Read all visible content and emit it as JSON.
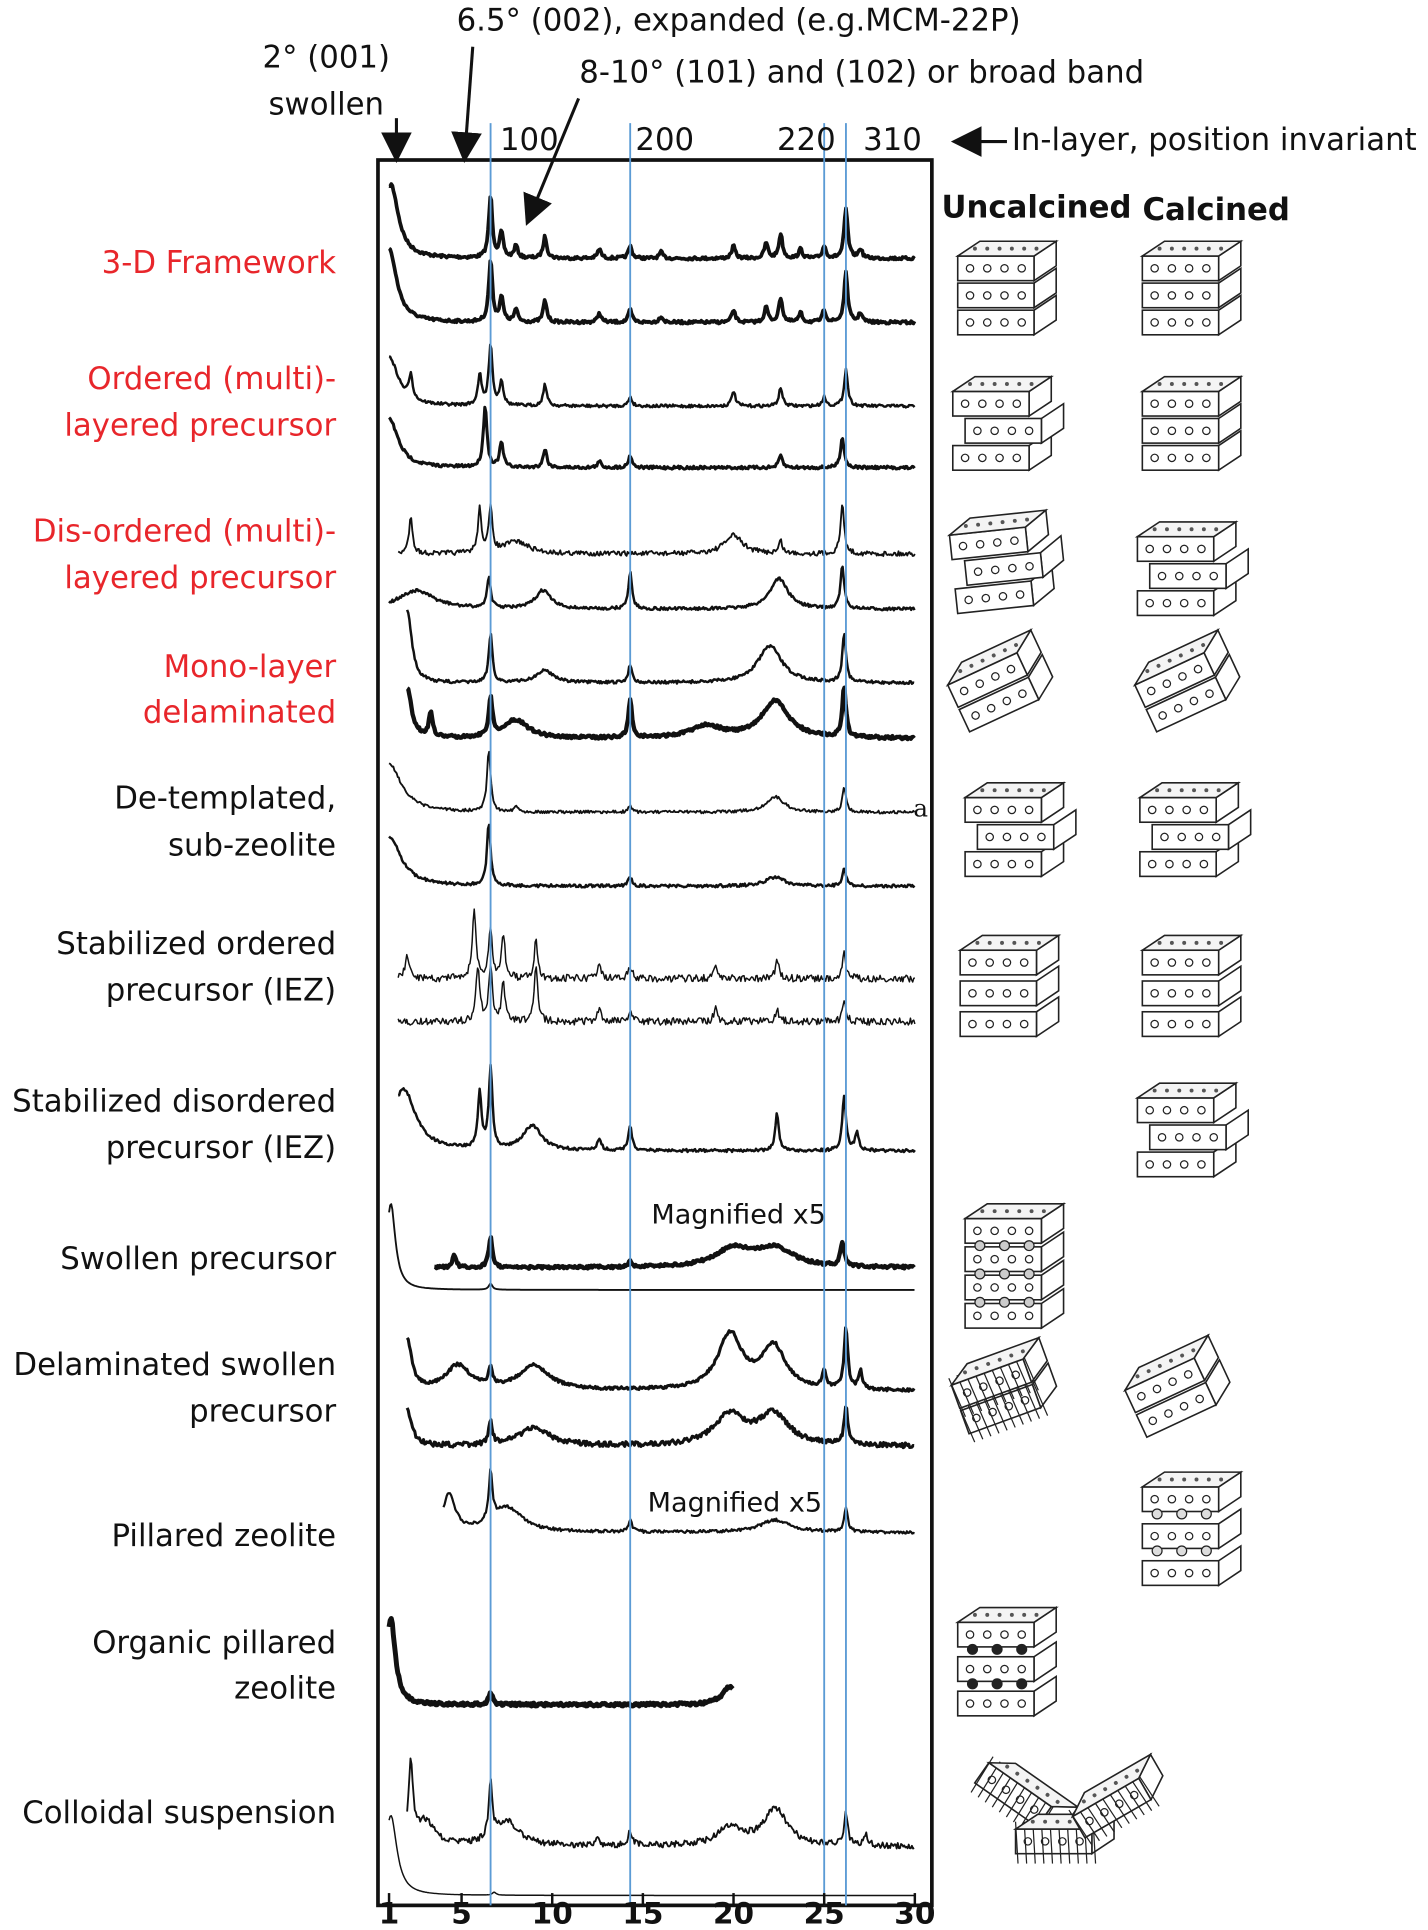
{
  "annotations": {
    "swollen_peak": [
      "2° (001)",
      "swollen"
    ],
    "expanded_peak": "6.5° (002), expanded (e.g.MCM-22P)",
    "broad_band": "8-10° (101) and (102) or broad band",
    "in_layer": "In-layer, position invariant",
    "reflections": [
      "100",
      "200",
      "220",
      "310"
    ],
    "magnified": [
      "Magnified x5",
      "Magnified x5"
    ],
    "mark": "a"
  },
  "columns": [
    "Uncalcined",
    "Calcined"
  ],
  "rows": [
    {
      "label": [
        "3-D Framework"
      ],
      "color": "#e8262b"
    },
    {
      "label": [
        "Ordered (multi)-",
        "layered precursor"
      ],
      "color": "#e8262b"
    },
    {
      "label": [
        "Dis-ordered (multi)-",
        "layered precursor"
      ],
      "color": "#e8262b"
    },
    {
      "label": [
        "Mono-layer",
        "delaminated"
      ],
      "color": "#e8262b"
    },
    {
      "label": [
        "De-templated,",
        "sub-zeolite"
      ],
      "color": "#111111"
    },
    {
      "label": [
        "Stabilized ordered",
        "precursor (IEZ)"
      ],
      "color": "#111111"
    },
    {
      "label": [
        "Stabilized disordered",
        "precursor (IEZ)"
      ],
      "color": "#111111"
    },
    {
      "label": [
        "Swollen precursor"
      ],
      "color": "#111111"
    },
    {
      "label": [
        "Delaminated swollen",
        "precursor"
      ],
      "color": "#111111"
    },
    {
      "label": [
        "Pillared  zeolite"
      ],
      "color": "#111111"
    },
    {
      "label": [
        "Organic pillared",
        "zeolite"
      ],
      "color": "#111111"
    },
    {
      "label": [
        "Colloidal suspension"
      ],
      "color": "#111111"
    }
  ],
  "x_axis": {
    "ticks": [
      1,
      5,
      10,
      15,
      20,
      25,
      30
    ]
  }
}
